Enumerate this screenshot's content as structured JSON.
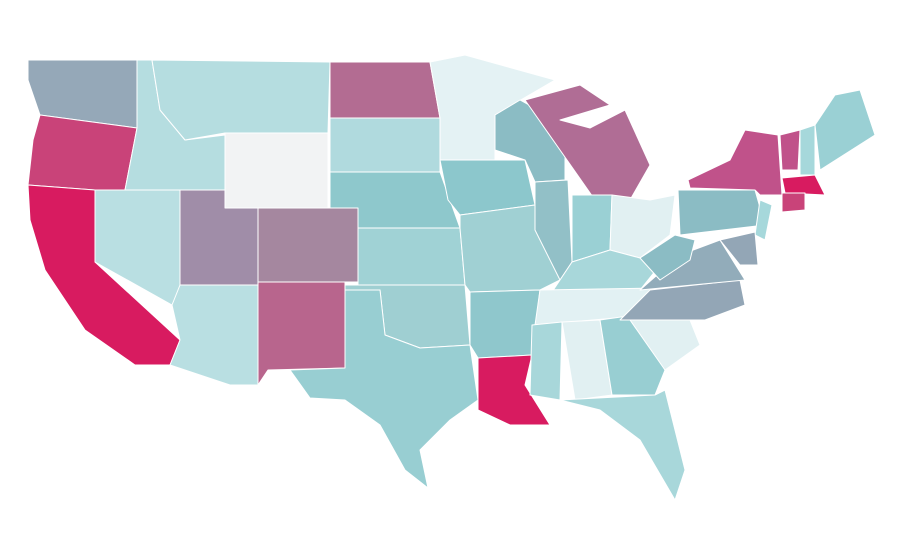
{
  "map": {
    "type": "choropleth",
    "regions": [
      {
        "color": "#95a8b8"
      },
      {
        "color": "#c94379"
      },
      {
        "color": "#d81b60"
      },
      {
        "color": "#b9dfe2"
      },
      {
        "color": "#b5dde0"
      },
      {
        "color": "#b5dde0"
      },
      {
        "color": "#f2f3f4"
      },
      {
        "color": "#a08da8"
      },
      {
        "color": "#a5879f"
      },
      {
        "color": "#b9dfe2"
      },
      {
        "color": "#b8658d"
      },
      {
        "color": "#b36c92"
      },
      {
        "color": "#b0dade"
      },
      {
        "color": "#8ec8cc"
      },
      {
        "color": "#a0d2d5"
      },
      {
        "color": "#9fcfd2"
      },
      {
        "color": "#98ced2"
      },
      {
        "color": "#e4f2f4"
      },
      {
        "color": "#8cc7cc"
      },
      {
        "color": "#a0d0d3"
      },
      {
        "color": "#8fc7cc"
      },
      {
        "color": "#d81b60"
      },
      {
        "color": "#8bbcc4"
      },
      {
        "color": "#92c0c7"
      },
      {
        "color": "#b06d95"
      },
      {
        "color": "#9ad0d4"
      },
      {
        "color": "#e1f0f2"
      },
      {
        "color": "#a8d7da"
      },
      {
        "color": "#e2f1f3"
      },
      {
        "color": "#a8d7da"
      },
      {
        "color": "#e1f0f2"
      },
      {
        "color": "#98ced2"
      },
      {
        "color": "#a8d7da"
      },
      {
        "color": "#e1f0f2"
      },
      {
        "color": "#93a6b6"
      },
      {
        "color": "#92acba"
      },
      {
        "color": "#8bbcc4"
      },
      {
        "color": "#8bbcc4"
      },
      {
        "color": "#c0528a"
      },
      {
        "color": "#c0528a"
      },
      {
        "color": "#a6d8db"
      },
      {
        "color": "#9ad0d4"
      },
      {
        "color": "#d81b60"
      },
      {
        "color": "#c94379"
      },
      {
        "color": "#a6d8db"
      },
      {
        "color": "#93a6b6"
      }
    ]
  }
}
